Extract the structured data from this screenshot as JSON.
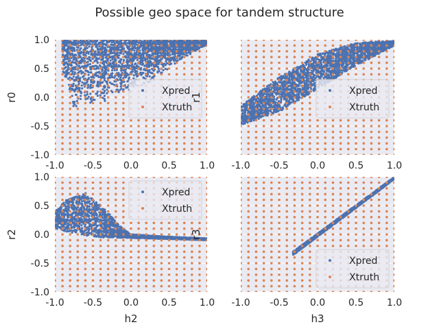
{
  "figure": {
    "suptitle": "Possible geo space for tandem structure"
  },
  "colors": {
    "background": "#EAEAF2",
    "grid": "#ffffff",
    "xpred": "#4C72B0",
    "xtruth": "#DD8452",
    "text": "#262626"
  },
  "chart_data": [
    {
      "type": "scatter",
      "panel": "top-left",
      "xlabel": "",
      "ylabel": "r0",
      "xlim": [
        -1,
        1
      ],
      "ylim": [
        -1,
        1
      ],
      "xticks": [
        "-1.0",
        "-0.5",
        "0.0",
        "0.5",
        "1.0"
      ],
      "yticks": [
        "-1.0",
        "-0.5",
        "0.0",
        "0.5",
        "1.0"
      ],
      "grid": true,
      "legend": "right",
      "series": [
        {
          "name": "Xpred",
          "region": {
            "x_range": [
              -0.9,
              1.0
            ],
            "lower_edge": [
              [
                -0.9,
                0.45
              ],
              [
                -0.75,
                -0.2
              ],
              [
                -0.5,
                -0.15
              ],
              [
                -0.2,
                0.0
              ],
              [
                0.0,
                0.1
              ],
              [
                0.3,
                0.3
              ],
              [
                0.6,
                0.6
              ],
              [
                0.9,
                0.85
              ],
              [
                1.0,
                0.88
              ]
            ],
            "upper": 1.0
          }
        },
        {
          "name": "Xtruth",
          "grid_spacing": 0.1,
          "x_range": [
            -1,
            1
          ],
          "y_range": [
            -1,
            1
          ]
        }
      ]
    },
    {
      "type": "scatter",
      "panel": "top-right",
      "xlabel": "",
      "ylabel": "r1",
      "xlim": [
        -1,
        1
      ],
      "ylim": [
        -1,
        1
      ],
      "xticks": [
        "-1.0",
        "-0.5",
        "0.0",
        "0.5",
        "1.0"
      ],
      "yticks": [],
      "grid": true,
      "legend": "right",
      "series": [
        {
          "name": "Xpred",
          "band": {
            "x_range": [
              -1.0,
              1.0
            ],
            "lower": [
              [
                -1.0,
                -0.48
              ],
              [
                -0.5,
                -0.25
              ],
              [
                0.0,
                0.15
              ],
              [
                0.5,
                0.55
              ],
              [
                1.0,
                0.9
              ]
            ],
            "upper": [
              [
                -1.0,
                -0.15
              ],
              [
                -0.5,
                0.35
              ],
              [
                0.0,
                0.75
              ],
              [
                0.5,
                0.95
              ],
              [
                1.0,
                0.98
              ]
            ]
          }
        },
        {
          "name": "Xtruth",
          "grid_spacing": 0.1,
          "x_range": [
            -1,
            1
          ],
          "y_range": [
            -1,
            1
          ]
        }
      ]
    },
    {
      "type": "scatter",
      "panel": "bottom-left",
      "xlabel": "h2",
      "ylabel": "r2",
      "xlim": [
        -1,
        1
      ],
      "ylim": [
        -1,
        1
      ],
      "xticks": [
        "-1.0",
        "-0.5",
        "0.0",
        "0.5",
        "1.0"
      ],
      "yticks": [
        "-1.0",
        "-0.5",
        "0.0",
        "0.5",
        "1.0"
      ],
      "grid": true,
      "legend": "top-right",
      "series": [
        {
          "name": "Xpred",
          "band": {
            "x_range": [
              -1.0,
              1.0
            ],
            "lower": [
              [
                -1.0,
                0.1
              ],
              [
                -0.7,
                0.0
              ],
              [
                -0.4,
                -0.05
              ],
              [
                0.0,
                -0.06
              ],
              [
                0.5,
                -0.08
              ],
              [
                1.0,
                -0.1
              ]
            ],
            "upper": [
              [
                -1.0,
                0.4
              ],
              [
                -0.85,
                0.6
              ],
              [
                -0.6,
                0.72
              ],
              [
                -0.35,
                0.45
              ],
              [
                -0.15,
                0.15
              ],
              [
                0.0,
                0.0
              ],
              [
                0.5,
                -0.04
              ],
              [
                1.0,
                -0.07
              ]
            ]
          }
        },
        {
          "name": "Xtruth",
          "grid_spacing": 0.1,
          "x_range": [
            -1,
            1
          ],
          "y_range": [
            -1,
            1
          ]
        }
      ]
    },
    {
      "type": "scatter",
      "panel": "bottom-right",
      "xlabel": "h3",
      "ylabel": "r3",
      "xlim": [
        -1,
        1
      ],
      "ylim": [
        -1,
        1
      ],
      "xticks": [
        "-1.0",
        "-0.5",
        "0.0",
        "0.5",
        "1.0"
      ],
      "yticks": [],
      "grid": true,
      "legend": "bottom-right",
      "series": [
        {
          "name": "Xpred",
          "band": {
            "x_range": [
              -0.32,
              1.0
            ],
            "lower": [
              [
                -0.32,
                -0.36
              ],
              [
                1.0,
                0.96
              ]
            ],
            "upper": [
              [
                -0.32,
                -0.3
              ],
              [
                1.0,
                1.0
              ]
            ]
          }
        },
        {
          "name": "Xtruth",
          "grid_spacing": 0.1,
          "x_range": [
            -1,
            1
          ],
          "y_range": [
            -1,
            1
          ]
        }
      ]
    }
  ]
}
